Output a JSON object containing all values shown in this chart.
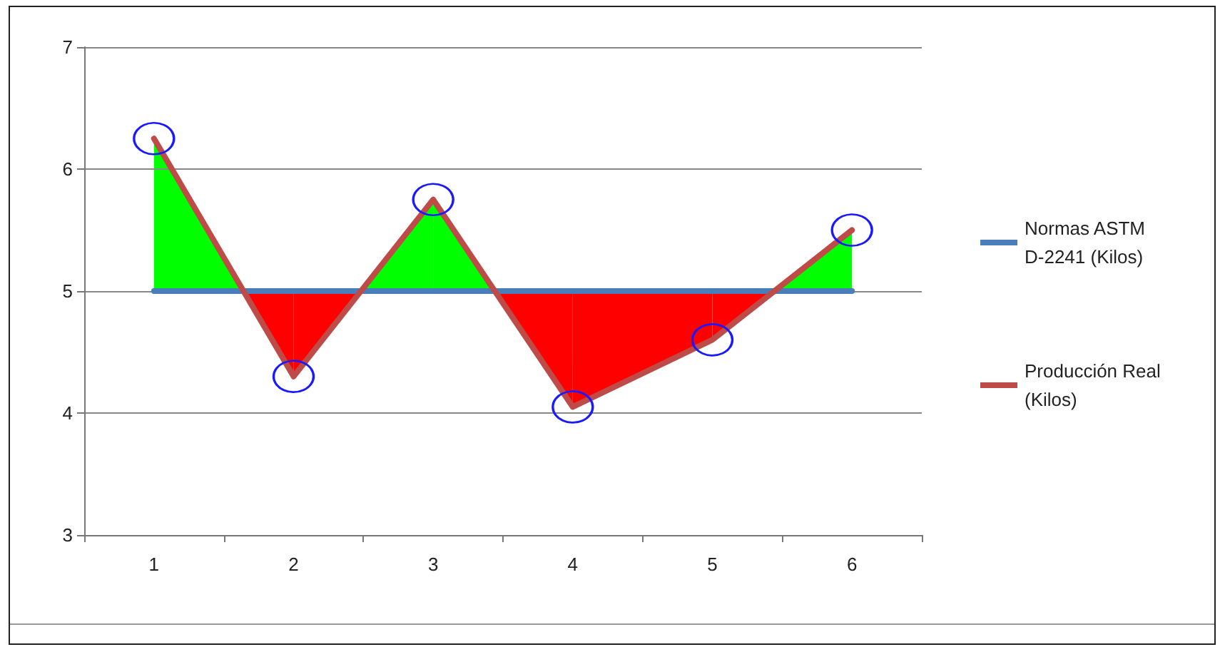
{
  "chart_data": {
    "type": "line",
    "categories": [
      "1",
      "2",
      "3",
      "4",
      "5",
      "6"
    ],
    "series": [
      {
        "name": "Normas ASTM D-2241 (Kilos)",
        "color": "#4a7ebb",
        "values": [
          5,
          5,
          5,
          5,
          5,
          5
        ]
      },
      {
        "name": "Producción Real (Kilos)",
        "color": "#be4b48",
        "marker": "circle",
        "values": [
          6.25,
          4.3,
          5.75,
          4.05,
          4.6,
          5.5
        ]
      }
    ],
    "ylim": [
      3,
      7
    ],
    "yticks": [
      3,
      4,
      5,
      6,
      7
    ],
    "grid": "y",
    "legend": "right",
    "marker": "none",
    "line_style": "solid"
  }
}
